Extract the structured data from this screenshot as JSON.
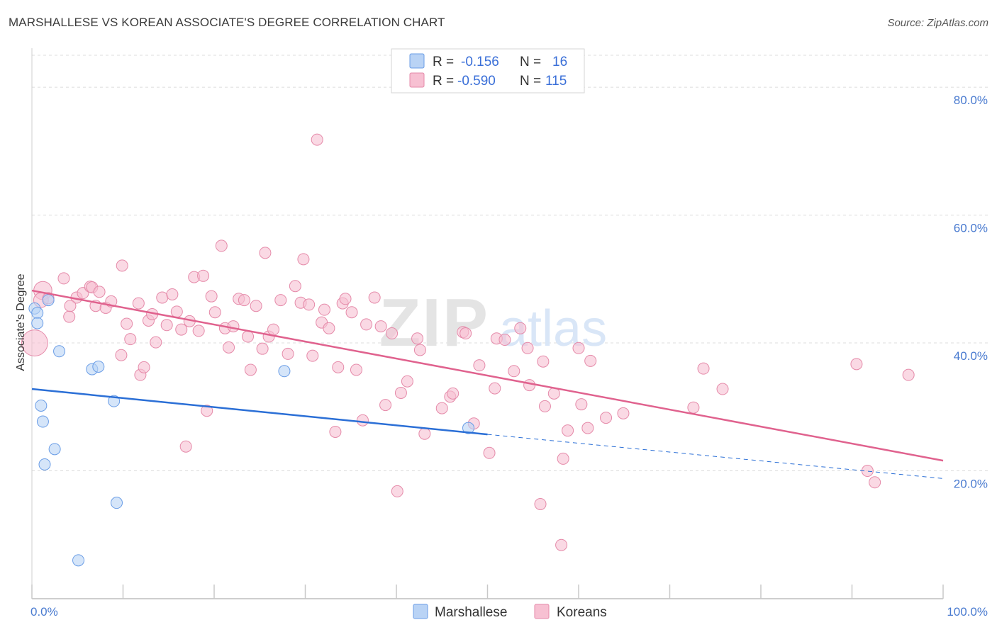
{
  "title": "MARSHALLESE VS KOREAN ASSOCIATE'S DEGREE CORRELATION CHART",
  "source": "Source: ZipAtlas.com",
  "watermark": {
    "zip": "ZIP",
    "atlas": "atlas"
  },
  "colors": {
    "marshallese_fill": "#b9d3f5",
    "marshallese_stroke": "#6a9de6",
    "marshallese_line": "#2b6fd6",
    "korean_fill": "#f7c0d2",
    "korean_stroke": "#e58aa9",
    "korean_line": "#e0628e",
    "tick_text": "#4a7bd0",
    "grid": "#dcdcdc"
  },
  "legend": {
    "r_label": "R =",
    "n_label": "N =",
    "rows": [
      {
        "name": "Marshallese",
        "r": "-0.156",
        "n": "16"
      },
      {
        "name": "Koreans",
        "r": "-0.590",
        "n": "115"
      }
    ]
  },
  "chart_data": {
    "type": "scatter",
    "title": "MARSHALLESE VS KOREAN ASSOCIATE'S DEGREE CORRELATION CHART",
    "xlabel": "",
    "ylabel": "Associate's Degree",
    "xlim": [
      0,
      100
    ],
    "ylim": [
      0,
      85
    ],
    "x_tick_labels": [
      "0.0%",
      "100.0%"
    ],
    "y_ticks": [
      20,
      40,
      60,
      80
    ],
    "y_tick_labels": [
      "20.0%",
      "40.0%",
      "60.0%",
      "80.0%"
    ],
    "grid": true,
    "series": [
      {
        "name": "Marshallese",
        "trend": {
          "x0": 0,
          "y0": 32.8,
          "x1": 50,
          "y1": 25.7,
          "dashed_to_x": 100,
          "dashed_to_y": 18.8
        },
        "points": [
          [
            0.3,
            45.4,
            1
          ],
          [
            0.6,
            44.7,
            1
          ],
          [
            0.6,
            43.1,
            1
          ],
          [
            1.8,
            46.7,
            1
          ],
          [
            3.0,
            38.7,
            1
          ],
          [
            1.0,
            30.2,
            1
          ],
          [
            1.2,
            27.7,
            1
          ],
          [
            2.5,
            23.4,
            1
          ],
          [
            1.4,
            21.0,
            1
          ],
          [
            6.6,
            35.9,
            1
          ],
          [
            7.3,
            36.3,
            1
          ],
          [
            9.0,
            30.9,
            1
          ],
          [
            9.3,
            15.0,
            1
          ],
          [
            5.1,
            6.0,
            1
          ],
          [
            27.7,
            35.6,
            1
          ],
          [
            47.9,
            26.7,
            1
          ]
        ]
      },
      {
        "name": "Koreans",
        "trend": {
          "x0": 0,
          "y0": 48.2,
          "x1": 100,
          "y1": 21.6
        },
        "points": [
          [
            0.3,
            40.0,
            2.3
          ],
          [
            1.2,
            48.2,
            1.6
          ],
          [
            1.0,
            46.7,
            1.3
          ],
          [
            1.8,
            47.0,
            1
          ],
          [
            3.5,
            50.1,
            1
          ],
          [
            4.1,
            44.1,
            1
          ],
          [
            4.9,
            47.1,
            1
          ],
          [
            5.6,
            47.8,
            1
          ],
          [
            6.4,
            48.8,
            1
          ],
          [
            6.6,
            48.7,
            1
          ],
          [
            7.4,
            48.0,
            1
          ],
          [
            7.0,
            45.8,
            1
          ],
          [
            8.1,
            45.5,
            1
          ],
          [
            8.7,
            46.5,
            1
          ],
          [
            4.2,
            45.8,
            1
          ],
          [
            9.8,
            38.1,
            1
          ],
          [
            9.9,
            52.1,
            1
          ],
          [
            10.4,
            43.0,
            1
          ],
          [
            10.8,
            40.6,
            1
          ],
          [
            11.7,
            46.2,
            1
          ],
          [
            11.9,
            35.0,
            1
          ],
          [
            12.3,
            36.2,
            1
          ],
          [
            12.8,
            43.5,
            1
          ],
          [
            13.2,
            44.5,
            1
          ],
          [
            13.6,
            40.1,
            1
          ],
          [
            14.3,
            47.1,
            1
          ],
          [
            14.8,
            42.8,
            1
          ],
          [
            15.4,
            47.6,
            1
          ],
          [
            15.9,
            44.9,
            1
          ],
          [
            16.4,
            42.1,
            1
          ],
          [
            16.9,
            23.8,
            1
          ],
          [
            17.3,
            43.4,
            1
          ],
          [
            17.8,
            50.3,
            1
          ],
          [
            18.3,
            41.9,
            1
          ],
          [
            18.8,
            50.5,
            1
          ],
          [
            19.2,
            29.4,
            1
          ],
          [
            19.7,
            47.3,
            1
          ],
          [
            20.1,
            44.8,
            1
          ],
          [
            20.8,
            55.2,
            1
          ],
          [
            21.2,
            42.3,
            1
          ],
          [
            21.6,
            39.3,
            1
          ],
          [
            22.1,
            42.6,
            1
          ],
          [
            22.7,
            46.9,
            1
          ],
          [
            23.3,
            46.7,
            1
          ],
          [
            23.7,
            41.0,
            1
          ],
          [
            24.0,
            35.8,
            1
          ],
          [
            24.6,
            45.8,
            1
          ],
          [
            25.3,
            39.1,
            1
          ],
          [
            25.6,
            54.1,
            1
          ],
          [
            26.0,
            41.0,
            1
          ],
          [
            26.5,
            42.1,
            1
          ],
          [
            27.3,
            46.7,
            1
          ],
          [
            28.1,
            38.3,
            1
          ],
          [
            28.9,
            48.9,
            1
          ],
          [
            29.5,
            46.3,
            1
          ],
          [
            29.8,
            53.1,
            1
          ],
          [
            30.4,
            46.0,
            1
          ],
          [
            30.8,
            38.0,
            1
          ],
          [
            31.3,
            71.8,
            1
          ],
          [
            31.8,
            43.2,
            1
          ],
          [
            32.1,
            45.2,
            1
          ],
          [
            32.6,
            42.3,
            1
          ],
          [
            33.3,
            26.1,
            1
          ],
          [
            33.6,
            36.2,
            1
          ],
          [
            34.1,
            46.2,
            1
          ],
          [
            34.4,
            46.9,
            1
          ],
          [
            35.1,
            44.8,
            1
          ],
          [
            35.6,
            35.8,
            1
          ],
          [
            36.3,
            27.9,
            1
          ],
          [
            36.7,
            42.9,
            1
          ],
          [
            37.6,
            47.1,
            1
          ],
          [
            38.3,
            42.6,
            1
          ],
          [
            38.8,
            30.3,
            1
          ],
          [
            39.5,
            41.5,
            1
          ],
          [
            40.1,
            16.8,
            1
          ],
          [
            40.5,
            32.2,
            1
          ],
          [
            41.2,
            34.0,
            1
          ],
          [
            42.3,
            40.7,
            1
          ],
          [
            42.6,
            38.9,
            1
          ],
          [
            43.1,
            25.8,
            1
          ],
          [
            45.0,
            29.8,
            1
          ],
          [
            45.9,
            31.6,
            1
          ],
          [
            46.2,
            32.1,
            1
          ],
          [
            47.3,
            41.7,
            1
          ],
          [
            47.6,
            41.5,
            1
          ],
          [
            48.5,
            27.4,
            1
          ],
          [
            49.1,
            36.5,
            1
          ],
          [
            50.2,
            22.8,
            1
          ],
          [
            50.8,
            32.9,
            1
          ],
          [
            51.0,
            40.7,
            1
          ],
          [
            51.9,
            40.5,
            1
          ],
          [
            52.9,
            35.6,
            1
          ],
          [
            53.6,
            42.3,
            1
          ],
          [
            54.4,
            39.2,
            1
          ],
          [
            54.6,
            33.4,
            1
          ],
          [
            55.8,
            14.8,
            1
          ],
          [
            56.1,
            37.1,
            1
          ],
          [
            57.3,
            32.1,
            1
          ],
          [
            58.3,
            21.9,
            1
          ],
          [
            58.1,
            8.4,
            1
          ],
          [
            58.8,
            26.3,
            1
          ],
          [
            60.0,
            39.2,
            1
          ],
          [
            60.3,
            30.4,
            1
          ],
          [
            61.0,
            26.7,
            1
          ],
          [
            61.3,
            37.2,
            1
          ],
          [
            64.9,
            29.0,
            1
          ],
          [
            72.6,
            29.9,
            1
          ],
          [
            73.7,
            36.0,
            1
          ],
          [
            75.8,
            32.8,
            1
          ],
          [
            90.5,
            36.7,
            1
          ],
          [
            91.7,
            20.0,
            1
          ],
          [
            92.5,
            18.2,
            1
          ],
          [
            96.2,
            35.0,
            1
          ],
          [
            56.3,
            30.1,
            1
          ],
          [
            63.0,
            28.3,
            1
          ]
        ]
      }
    ]
  }
}
